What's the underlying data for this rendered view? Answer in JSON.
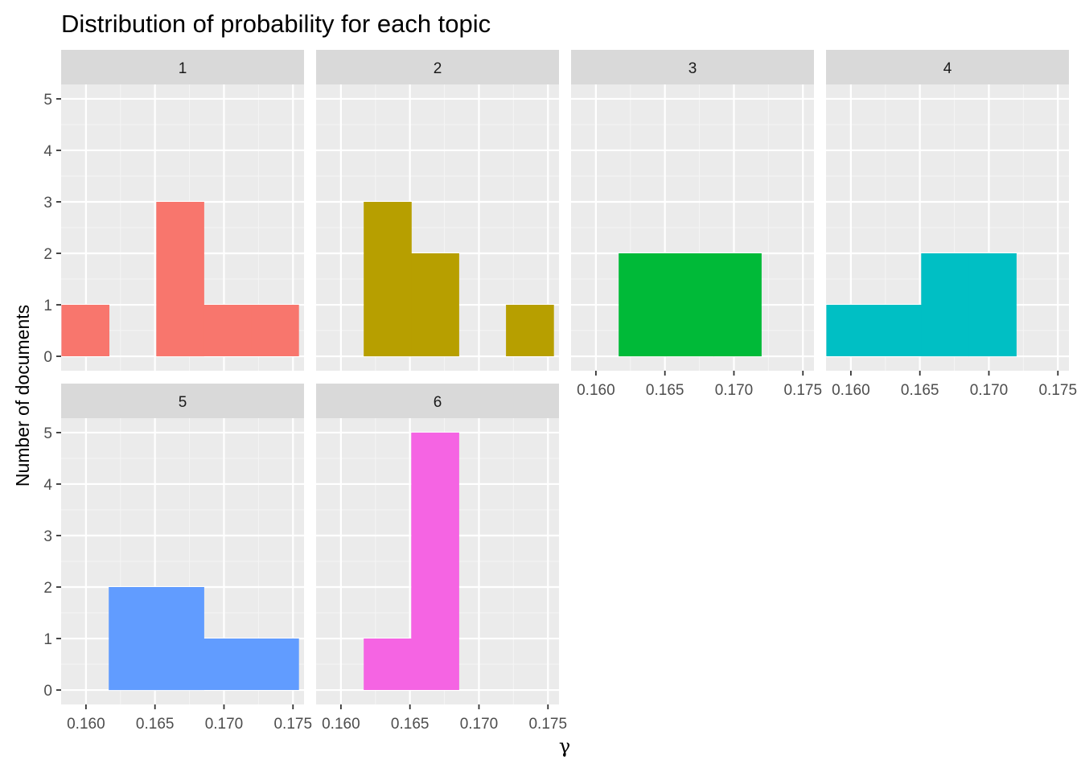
{
  "chart_data": {
    "type": "bar",
    "title": "Distribution of probability for each topic",
    "xlabel": "γ",
    "ylabel": "Number of documents",
    "xlim": [
      0.1582,
      0.1758
    ],
    "ylim": [
      -0.28,
      5.28
    ],
    "x_ticks": [
      "0.160",
      "0.165",
      "0.170",
      "0.175"
    ],
    "x_tick_values": [
      0.16,
      0.165,
      0.17,
      0.175
    ],
    "y_ticks": [
      "0",
      "1",
      "2",
      "3",
      "4",
      "5"
    ],
    "y_tick_values": [
      0,
      1,
      2,
      3,
      4,
      5
    ],
    "bin_centers": [
      0.15994,
      0.16337,
      0.16681,
      0.17025,
      0.17368
    ],
    "bin_width": 0.003436,
    "grid": true,
    "legend": "none",
    "panels": [
      {
        "label": "1",
        "color": "#F8766D",
        "values": [
          1,
          0,
          3,
          1,
          1
        ]
      },
      {
        "label": "2",
        "color": "#B79F00",
        "values": [
          0,
          3,
          2,
          0,
          1
        ]
      },
      {
        "label": "3",
        "color": "#00BA38",
        "values": [
          0,
          2,
          2,
          2,
          0
        ]
      },
      {
        "label": "4",
        "color": "#00BFC4",
        "values": [
          1,
          1,
          2,
          2,
          0
        ]
      },
      {
        "label": "5",
        "color": "#619CFF",
        "values": [
          0,
          2,
          2,
          1,
          1
        ]
      },
      {
        "label": "6",
        "color": "#F564E3",
        "values": [
          0,
          1,
          5,
          0,
          0
        ]
      }
    ]
  }
}
